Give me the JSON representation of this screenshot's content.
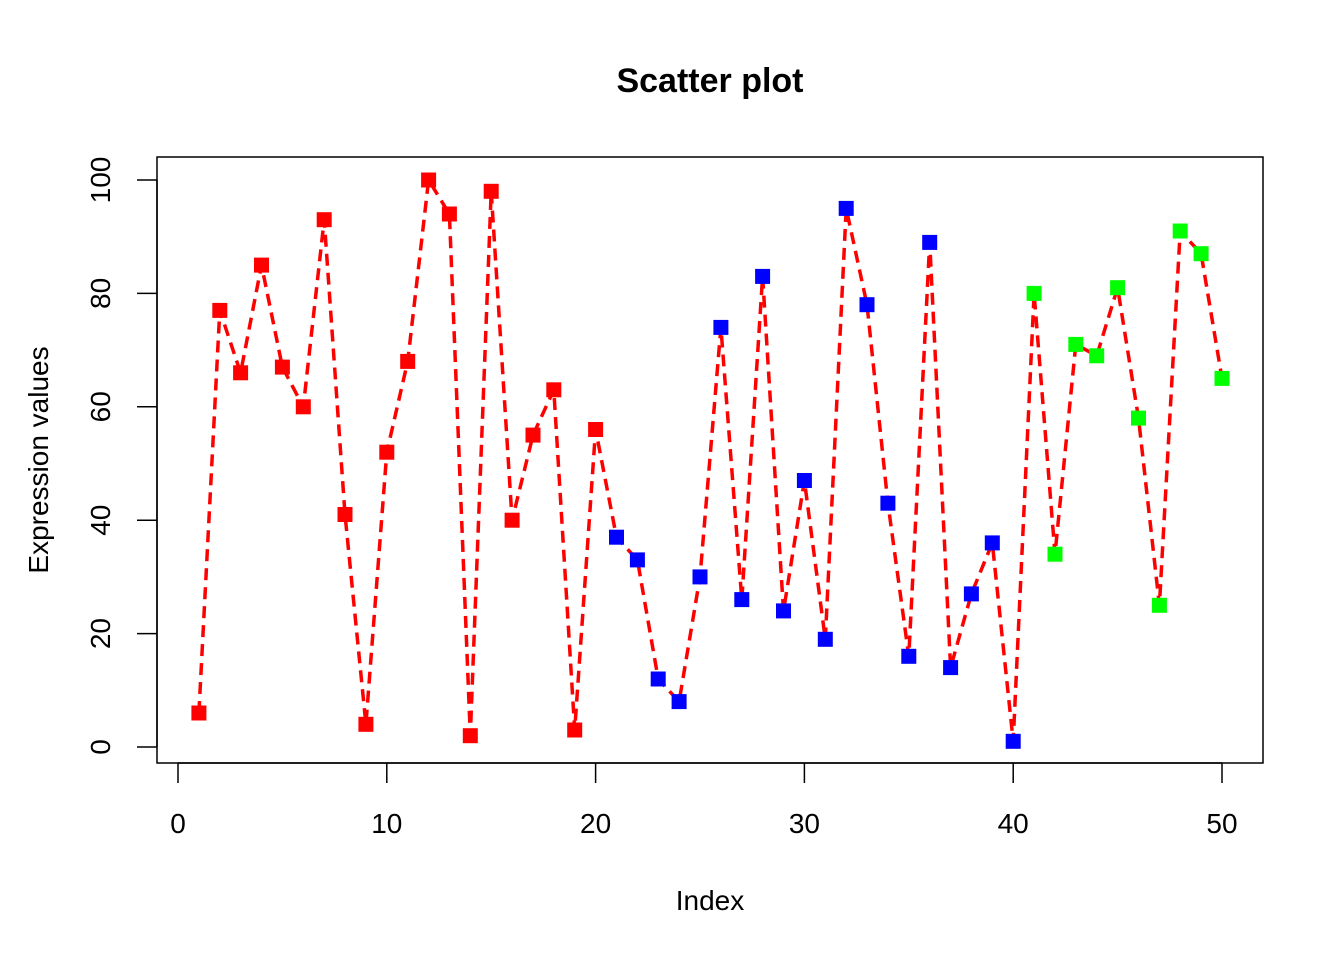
{
  "chart_data": {
    "type": "scatter",
    "title": "Scatter plot",
    "xlabel": "Index",
    "ylabel": "Expression values",
    "xlim": [
      0,
      50
    ],
    "ylim": [
      0,
      100
    ],
    "x_ticks": [
      0,
      10,
      20,
      30,
      40,
      50
    ],
    "y_ticks": [
      0,
      20,
      40,
      60,
      80,
      100
    ],
    "grid": false,
    "legend": "none",
    "line": {
      "style": "dashed",
      "color": "#ff0000",
      "connects_all_points": true
    },
    "marker": "square",
    "colors": {
      "red": "#ff0000",
      "blue": "#0000ff",
      "green": "#00ff00"
    },
    "x": [
      1,
      2,
      3,
      4,
      5,
      6,
      7,
      8,
      9,
      10,
      11,
      12,
      13,
      14,
      15,
      16,
      17,
      18,
      19,
      20,
      21,
      22,
      23,
      24,
      25,
      26,
      27,
      28,
      29,
      30,
      31,
      32,
      33,
      34,
      35,
      36,
      37,
      38,
      39,
      40,
      41,
      42,
      43,
      44,
      45,
      46,
      47,
      48,
      49,
      50
    ],
    "y": [
      6,
      77,
      66,
      85,
      67,
      60,
      93,
      41,
      4,
      52,
      68,
      100,
      94,
      2,
      98,
      40,
      55,
      63,
      3,
      56,
      37,
      33,
      12,
      8,
      30,
      74,
      26,
      83,
      24,
      47,
      19,
      95,
      78,
      43,
      16,
      89,
      14,
      27,
      36,
      1,
      80,
      34,
      71,
      69,
      81,
      58,
      25,
      91,
      87,
      65
    ],
    "point_colors": [
      "#ff0000",
      "#ff0000",
      "#ff0000",
      "#ff0000",
      "#ff0000",
      "#ff0000",
      "#ff0000",
      "#ff0000",
      "#ff0000",
      "#ff0000",
      "#ff0000",
      "#ff0000",
      "#ff0000",
      "#ff0000",
      "#ff0000",
      "#ff0000",
      "#ff0000",
      "#ff0000",
      "#ff0000",
      "#ff0000",
      "#0000ff",
      "#0000ff",
      "#0000ff",
      "#0000ff",
      "#0000ff",
      "#0000ff",
      "#0000ff",
      "#0000ff",
      "#0000ff",
      "#0000ff",
      "#0000ff",
      "#0000ff",
      "#0000ff",
      "#0000ff",
      "#0000ff",
      "#0000ff",
      "#0000ff",
      "#0000ff",
      "#0000ff",
      "#0000ff",
      "#00ff00",
      "#00ff00",
      "#00ff00",
      "#00ff00",
      "#00ff00",
      "#00ff00",
      "#00ff00",
      "#00ff00",
      "#00ff00",
      "#00ff00"
    ]
  }
}
